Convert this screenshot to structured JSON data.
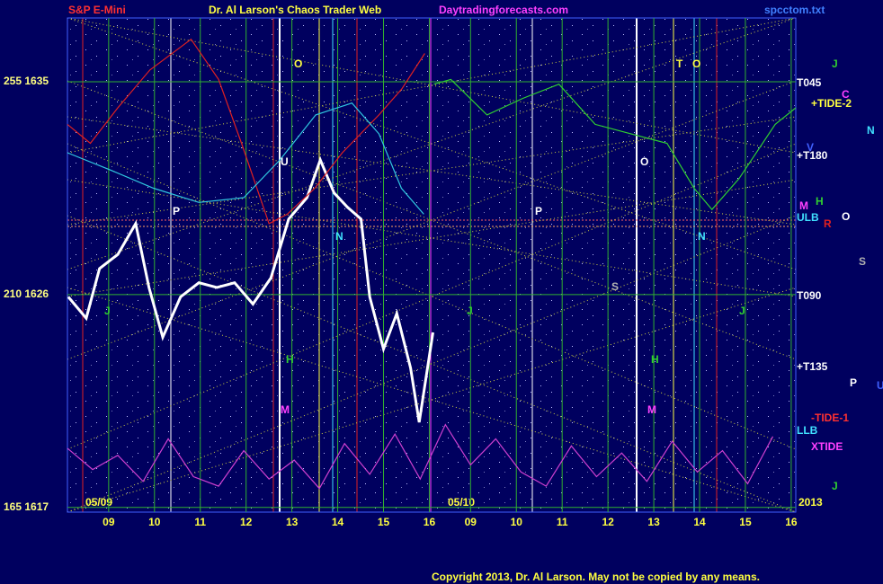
{
  "chart_data": {
    "type": "line",
    "title": "Dr. Al Larson's Chaos Trader Web",
    "market": "S&P E-Mini",
    "site": "Daytradingforecasts.com",
    "file": "spcctom.txt",
    "copyright": "Copyright 2013, Dr. Al Larson. May not be copied by any means.",
    "date_labels": [
      "05/09",
      "05/10",
      "2013"
    ],
    "xlim": [
      8.1,
      24.0
    ],
    "ylim": [
      1616.8,
      1637.7
    ],
    "xticks": [
      {
        "value": 9,
        "label": "09"
      },
      10,
      11,
      12,
      13,
      14,
      15,
      16,
      {
        "value": 16.9,
        "label": "09"
      },
      {
        "value": 17.9,
        "label": "10"
      },
      {
        "value": 18.9,
        "label": "11"
      },
      {
        "value": 19.9,
        "label": "12"
      },
      {
        "value": 20.9,
        "label": "13"
      },
      {
        "value": 21.9,
        "label": "14"
      },
      {
        "value": 22.9,
        "label": "15"
      },
      {
        "value": 23.9,
        "label": "16"
      }
    ],
    "yticks": [
      {
        "value": 1635,
        "label": "255  1635"
      },
      {
        "value": 1626,
        "label": "210  1626"
      },
      {
        "value": 1617,
        "label": "165  1617"
      }
    ],
    "grid": true,
    "series": [
      {
        "name": "Price",
        "color": "#ffffff",
        "x": [
          8.12,
          8.51,
          8.8,
          9.2,
          9.59,
          9.88,
          10.18,
          10.57,
          10.97,
          11.36,
          11.75,
          12.15,
          12.54,
          12.93,
          13.33,
          13.62,
          13.92,
          14.21,
          14.51,
          14.7,
          15.0,
          15.29,
          15.59,
          15.78,
          16.08
        ],
        "values": [
          1625.9,
          1625.0,
          1627.1,
          1627.7,
          1629.0,
          1626.3,
          1624.2,
          1625.9,
          1626.5,
          1626.3,
          1626.5,
          1625.6,
          1626.7,
          1629.2,
          1630.1,
          1631.7,
          1630.3,
          1629.7,
          1629.2,
          1625.9,
          1623.7,
          1625.2,
          1622.9,
          1620.6,
          1624.4
        ]
      },
      {
        "name": "TIDE-1",
        "color": "#e02020",
        "x": [
          8.1,
          8.6,
          9.2,
          9.9,
          10.8,
          11.4,
          11.9,
          12.5,
          12.9,
          13.5,
          14.1,
          14.9,
          15.4,
          15.9
        ],
        "values": [
          1633.2,
          1632.4,
          1633.9,
          1635.5,
          1636.8,
          1635.1,
          1632.4,
          1629.0,
          1629.4,
          1630.5,
          1632.0,
          1633.6,
          1634.7,
          1636.2
        ]
      },
      {
        "name": "TIDE-2",
        "color": "#30d030",
        "x": [
          16.1,
          16.47,
          17.26,
          18.04,
          18.83,
          19.62,
          20.4,
          21.19,
          21.78,
          22.17,
          22.76,
          23.55,
          24.0
        ],
        "values": [
          1634.9,
          1635.1,
          1633.6,
          1634.3,
          1634.9,
          1633.2,
          1632.8,
          1632.4,
          1630.5,
          1629.6,
          1630.9,
          1633.2,
          1633.9
        ]
      },
      {
        "name": "Band",
        "color": "#30c8e0",
        "x": [
          8.1,
          9.0,
          9.98,
          10.97,
          11.95,
          12.74,
          13.52,
          14.31,
          14.9,
          15.39,
          15.88
        ],
        "values": [
          1632.0,
          1631.3,
          1630.5,
          1629.9,
          1630.1,
          1631.7,
          1633.6,
          1634.1,
          1632.8,
          1630.5,
          1629.4
        ]
      },
      {
        "name": "XTIDE",
        "color": "#d040d0",
        "x": [
          8.1,
          8.65,
          9.2,
          9.75,
          10.3,
          10.85,
          11.4,
          11.95,
          12.5,
          13.05,
          13.6,
          14.15,
          14.7,
          15.25,
          15.8,
          16.35,
          16.9,
          17.45,
          18.0,
          18.55,
          19.1,
          19.65,
          20.2,
          20.75,
          21.3,
          21.85,
          22.4,
          22.95,
          23.5
        ],
        "values": [
          1619.5,
          1618.6,
          1619.2,
          1618.1,
          1619.9,
          1618.3,
          1617.9,
          1619.4,
          1618.2,
          1619.0,
          1617.8,
          1619.7,
          1618.4,
          1620.1,
          1618.2,
          1620.5,
          1618.8,
          1619.9,
          1618.5,
          1617.9,
          1619.6,
          1618.3,
          1619.3,
          1618.1,
          1619.8,
          1618.5,
          1619.4,
          1618.0,
          1620.0
        ]
      }
    ],
    "line_labels": [
      {
        "text": "T045",
        "color": "#ffffff"
      },
      {
        "text": "+TIDE-2",
        "color": "#ffff40"
      },
      {
        "text": "+T180",
        "color": "#ffffff"
      },
      {
        "text": "ULB",
        "color": "#40e0ff"
      },
      {
        "text": "T090",
        "color": "#ffffff"
      },
      {
        "text": "+T135",
        "color": "#ffffff"
      },
      {
        "text": "-TIDE-1",
        "color": "#ff3030"
      },
      {
        "text": "LLB",
        "color": "#40e0ff"
      },
      {
        "text": "XTIDE",
        "color": "#ff40ff"
      }
    ],
    "planets": [
      {
        "text": "J",
        "color": "#30d030"
      },
      {
        "text": "C",
        "color": "#ff40ff"
      },
      {
        "text": "N",
        "color": "#40e0ff"
      },
      {
        "text": "V",
        "color": "#4060ff"
      },
      {
        "text": "H",
        "color": "#30d030"
      },
      {
        "text": "M",
        "color": "#ff40ff"
      },
      {
        "text": "O",
        "color": "#ffffff"
      },
      {
        "text": "R",
        "color": "#e02020"
      },
      {
        "text": "S",
        "color": "#b0b0b0"
      },
      {
        "text": "P",
        "color": "#ffffff"
      },
      {
        "text": "U",
        "color": "#4060ff"
      },
      {
        "text": "J",
        "color": "#30d030"
      },
      {
        "text": "O",
        "color": "#ffff40"
      },
      {
        "text": "T",
        "color": "#ffff40"
      },
      {
        "text": "O",
        "color": "#ffff40"
      },
      {
        "text": "U",
        "color": "#ffffff"
      },
      {
        "text": "O",
        "color": "#ffffff"
      },
      {
        "text": "P",
        "color": "#ffffff"
      },
      {
        "text": "P",
        "color": "#ffffff"
      },
      {
        "text": "N",
        "color": "#40e0ff"
      },
      {
        "text": "N",
        "color": "#40e0ff"
      },
      {
        "text": "J",
        "color": "#30d030"
      },
      {
        "text": "J",
        "color": "#30d030"
      },
      {
        "text": "J",
        "color": "#30d030"
      },
      {
        "text": "H",
        "color": "#30d030"
      },
      {
        "text": "H",
        "color": "#30d030"
      },
      {
        "text": "S",
        "color": "#b0b0b0"
      },
      {
        "text": "M",
        "color": "#ff40ff"
      },
      {
        "text": "M",
        "color": "#ff40ff"
      }
    ]
  }
}
